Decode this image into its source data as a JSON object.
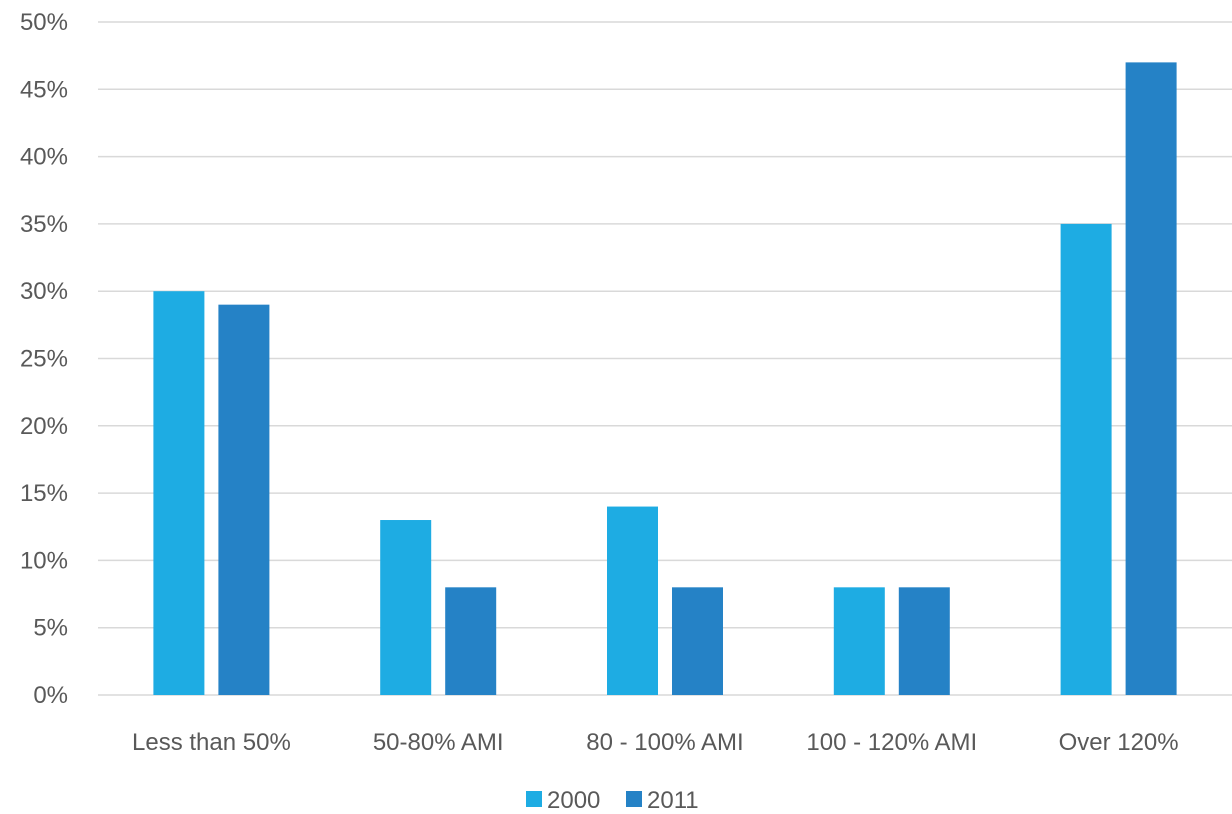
{
  "chart_data": {
    "type": "bar",
    "title": "",
    "xlabel": "",
    "ylabel": "",
    "categories": [
      "Less than 50%",
      "50-80% AMI",
      "80 - 100% AMI",
      "100 - 120% AMI",
      "Over 120%"
    ],
    "series": [
      {
        "name": "2000",
        "color": "#1eace3",
        "values": [
          30,
          13,
          14,
          8,
          35
        ]
      },
      {
        "name": "2011",
        "color": "#2582c6",
        "values": [
          29,
          8,
          8,
          8,
          47
        ]
      }
    ],
    "ylim": [
      0,
      50
    ],
    "yticks": [
      0,
      5,
      10,
      15,
      20,
      25,
      30,
      35,
      40,
      45,
      50
    ],
    "ytick_labels": [
      "0%",
      "5%",
      "10%",
      "15%",
      "20%",
      "25%",
      "30%",
      "35%",
      "40%",
      "45%",
      "50%"
    ],
    "grid": true,
    "legend_position": "bottom"
  }
}
